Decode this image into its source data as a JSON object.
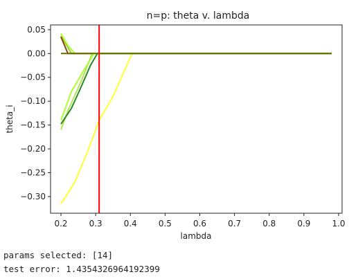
{
  "chart_data": {
    "type": "line",
    "title": "n=p: theta v. lambda",
    "xlabel": "lambda",
    "ylabel": "theta_i",
    "xlim": [
      0.17,
      1.01
    ],
    "ylim": [
      -0.335,
      0.06
    ],
    "xticks": [
      0.2,
      0.3,
      0.4,
      0.5,
      0.6,
      0.7,
      0.8,
      0.9,
      1.0
    ],
    "xtick_labels": [
      "0.2",
      "0.3",
      "0.4",
      "0.5",
      "0.6",
      "0.7",
      "0.8",
      "0.9",
      "1.0"
    ],
    "yticks": [
      0.05,
      0.0,
      -0.05,
      -0.1,
      -0.15,
      -0.2,
      -0.25,
      -0.3
    ],
    "ytick_labels": [
      "0.05",
      "0.00",
      "−0.05",
      "−0.10",
      "−0.15",
      "−0.20",
      "−0.25",
      "−0.30"
    ],
    "grid": false,
    "series": [
      {
        "color": "#ffff33",
        "x": [
          0.2,
          0.24,
          0.28,
          0.31,
          0.35,
          0.405,
          0.98
        ],
        "y": [
          -0.315,
          -0.27,
          -0.2,
          -0.14,
          -0.09,
          0.0,
          0.0
        ]
      },
      {
        "color": "#9acd32",
        "x": [
          0.2,
          0.23,
          0.98
        ],
        "y": [
          0.037,
          0.0,
          0.0
        ]
      },
      {
        "color": "#adff2f",
        "x": [
          0.2,
          0.22,
          0.24,
          0.28,
          0.3,
          0.98
        ],
        "y": [
          0.042,
          0.017,
          0.0,
          0.0,
          0.0,
          0.0
        ]
      },
      {
        "color": "#8b4513",
        "x": [
          0.2,
          0.22,
          0.98
        ],
        "y": [
          0.035,
          0.0,
          0.0
        ]
      },
      {
        "color": "#b8e05a",
        "x": [
          0.2,
          0.22,
          0.26,
          0.29,
          0.98
        ],
        "y": [
          -0.16,
          -0.12,
          -0.055,
          0.0,
          0.0
        ]
      },
      {
        "color": "#adff2f",
        "x": [
          0.2,
          0.23,
          0.27,
          0.295,
          0.98
        ],
        "y": [
          -0.14,
          -0.08,
          -0.03,
          0.0,
          0.0
        ]
      },
      {
        "color": "#228b22",
        "x": [
          0.2,
          0.23,
          0.255,
          0.285,
          0.305,
          0.98
        ],
        "y": [
          -0.148,
          -0.115,
          -0.075,
          -0.025,
          0.0,
          0.0
        ]
      },
      {
        "color": "#6b6b00",
        "x": [
          0.2,
          0.98
        ],
        "y": [
          0.0,
          0.0
        ]
      }
    ],
    "vline": {
      "x": 0.31,
      "color": "#ff0000"
    }
  },
  "output": {
    "params_line": "params selected: [14]",
    "error_line": "test error: 1.4354326964192399"
  }
}
